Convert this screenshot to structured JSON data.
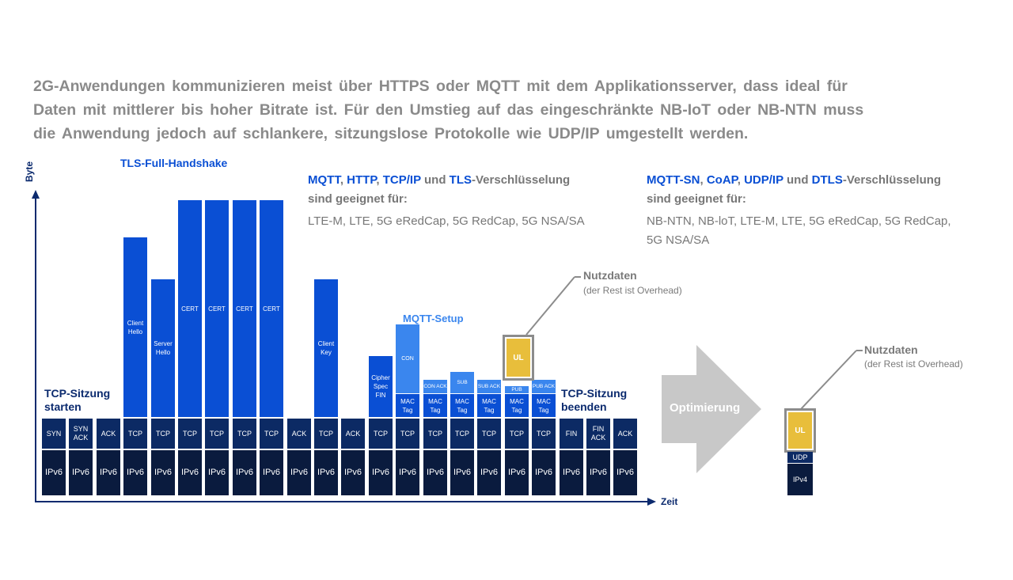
{
  "intro": [
    "2G-Anwendungen kommunizieren meist über HTTPS oder MQTT mit dem Applikationsserver, dass ideal für",
    "Daten mit mittlerer bis hoher Bitrate ist. Für den Umstieg auf das eingeschränkte NB-IoT oder NB-NTN muss",
    "die Anwendung jedoch auf schlankere, sitzungslose Protokolle wie UDP/IP umgestellt werden."
  ],
  "axis": {
    "y_label": "Byte",
    "x_label": "Zeit"
  },
  "headings": {
    "tls": "TLS-Full-Handshake",
    "mqtt": "MQTT-Setup",
    "tcp_start_1": "TCP-Sitzung",
    "tcp_start_2": "starten",
    "tcp_end_1": "TCP-Sitzung",
    "tcp_end_2": "beenden"
  },
  "left_info": {
    "kw1": "MQTT",
    "sep1": ", ",
    "kw2": "HTTP",
    "sep2": ", ",
    "kw3": "TCP/IP",
    "sep3": " und ",
    "kw4": "TLS",
    "tail": "-Verschlüsselung",
    "line2": "sind geeignet für:",
    "tech": "LTE-M, LTE, 5G eRedCap, 5G RedCap, 5G NSA/SA"
  },
  "right_info": {
    "kw1": "MQTT-SN",
    "sep1": ", ",
    "kw2": "CoAP",
    "sep2": ", ",
    "kw3": "UDP/IP",
    "sep3": " und ",
    "kw4": "DTLS",
    "tail": "-Verschlüsselung",
    "line2": "sind geeignet für:",
    "tech1": "NB-NTN, NB-loT, LTE-M, LTE, 5G eRedCap, 5G RedCap,",
    "tech2": "5G NSA/SA"
  },
  "callouts": {
    "left_title": "Nutzdaten",
    "left_sub": "(der Rest ist Overhead)",
    "right_title": "Nutzdaten",
    "right_sub": "(der Rest ist Overhead)"
  },
  "optimize_label": "Optimierung",
  "ip_labels": [
    "IPv6",
    "IPv6",
    "IPv6",
    "IPv6",
    "IPv6",
    "IPv6",
    "IPv6",
    "IPv6",
    "IPv6",
    "IPv6",
    "IPv6",
    "IPv6",
    "IPv6",
    "IPv6",
    "IPv6",
    "IPv6",
    "IPv6",
    "IPv6",
    "IPv6",
    "IPv6",
    "IPv6",
    "IPv6"
  ],
  "transport_labels": [
    "SYN",
    "SYN ACK",
    "ACK",
    "TCP",
    "TCP",
    "TCP",
    "TCP",
    "TCP",
    "TCP",
    "ACK",
    "TCP",
    "ACK",
    "TCP",
    "TCP",
    "TCP",
    "TCP",
    "TCP",
    "TCP",
    "TCP",
    "FIN",
    "FIN ACK",
    "ACK"
  ],
  "tls_labels": [
    "Client Hello",
    "Server Hello",
    "CERT",
    "CERT",
    "CERT",
    "CERT",
    "Client Key",
    "Cipher Spec FIN"
  ],
  "tls_levels": [
    0.709,
    0.544,
    0.857,
    0.857,
    0.857,
    0.857,
    0.544,
    0.24
  ],
  "mac_label": "MAC Tag",
  "mqtt_labels": [
    "CON",
    "CON ACK",
    "SUB",
    "SUB ACK",
    "PUB",
    "PUB ACK"
  ],
  "ul_label": "UL",
  "opt_stack": {
    "ul": "UL",
    "udp": "UDP",
    "ip": "IPv4"
  },
  "colors": {
    "ip": "#0a1b3e",
    "tcp": "#0c2a64",
    "tls": "#0a4fd4",
    "mqtt": "#3a86ee",
    "ul": "#e8be3b",
    "arrow": "#c8c8c8"
  }
}
